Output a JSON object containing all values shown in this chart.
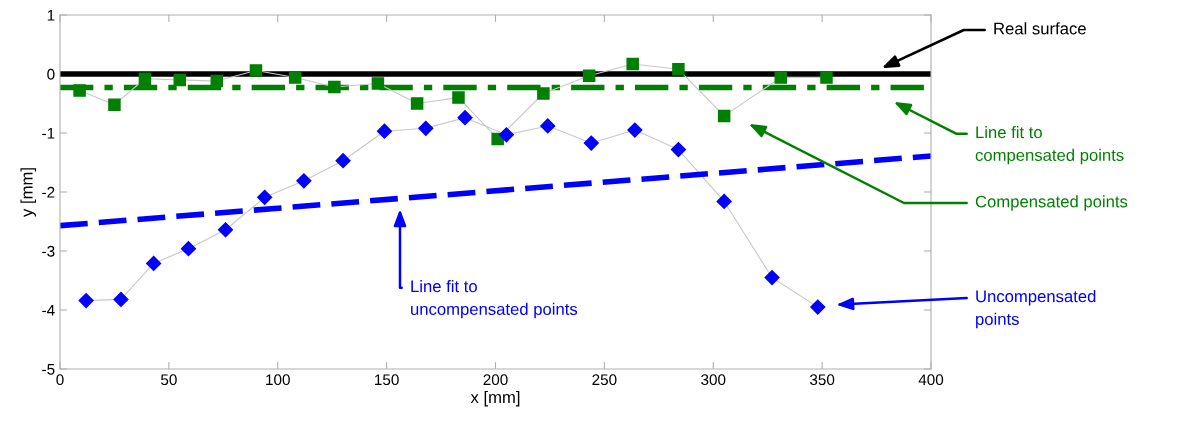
{
  "chart_data": {
    "type": "line",
    "xlabel": "x [mm]",
    "ylabel": "y [mm]",
    "xlim": [
      0,
      400
    ],
    "ylim": [
      -5,
      1
    ],
    "xticks": [
      0,
      50,
      100,
      150,
      200,
      250,
      300,
      350,
      400
    ],
    "yticks": [
      -5,
      -4,
      -3,
      -2,
      -1,
      0,
      1
    ],
    "grid": false,
    "legend": false,
    "series": [
      {
        "color": "#000000",
        "line_style": "solid",
        "marker": "none",
        "x": [
          0,
          400
        ],
        "values": [
          0,
          0
        ]
      },
      {
        "color": "#008000",
        "line_style": "dashdot",
        "marker": "none",
        "x": [
          0,
          400
        ],
        "values": [
          -0.23,
          -0.23
        ]
      },
      {
        "color": "#008000",
        "line_style": "solid",
        "marker": "square",
        "x": [
          9,
          25,
          39,
          55,
          72,
          90,
          108,
          126,
          146,
          164,
          183,
          201,
          222,
          243,
          263,
          284,
          305,
          331,
          352
        ],
        "values": [
          -0.28,
          -0.52,
          -0.08,
          -0.1,
          -0.12,
          0.06,
          -0.06,
          -0.22,
          -0.16,
          -0.5,
          -0.4,
          -1.1,
          -0.33,
          -0.03,
          0.17,
          0.08,
          -0.71,
          -0.06,
          -0.06
        ]
      },
      {
        "color": "#0000ff",
        "line_style": "solid",
        "marker": "diamond",
        "x": [
          12,
          28,
          43,
          59,
          76,
          94,
          112,
          130,
          149,
          168,
          186,
          205,
          224,
          244,
          264,
          284,
          305,
          327,
          348
        ],
        "values": [
          -3.84,
          -3.82,
          -3.21,
          -2.96,
          -2.64,
          -2.09,
          -1.81,
          -1.47,
          -0.97,
          -0.92,
          -0.74,
          -1.03,
          -0.88,
          -1.17,
          -0.95,
          -1.28,
          -2.16,
          -3.45,
          -3.95
        ]
      },
      {
        "color": "#0000ff",
        "line_style": "dashed",
        "marker": "none",
        "x": [
          0,
          400
        ],
        "values": [
          -2.57,
          -1.39
        ]
      }
    ],
    "annotations": [
      "Real surface",
      "Line fit to\ncompensated points",
      "Compensated points",
      "Uncompensated\npoints",
      "Line fit to\nuncompensated points"
    ]
  }
}
